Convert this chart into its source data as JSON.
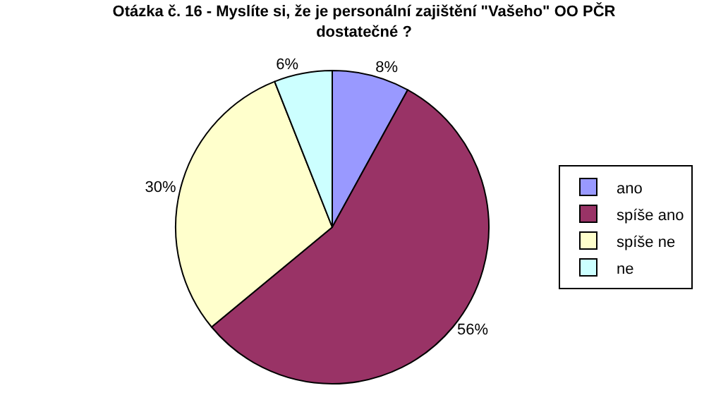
{
  "chart_data": {
    "type": "pie",
    "title": "Otázka č. 16 - Myslíte si, že je personální zajištění \"Vašeho\" OO PČR dostatečné ?",
    "categories": [
      "ano",
      "spíše ano",
      "spíše ne",
      "ne"
    ],
    "values": [
      8,
      56,
      30,
      6
    ],
    "value_labels": [
      "8%",
      "56%",
      "30%",
      "6%"
    ],
    "colors": [
      "#9999ff",
      "#993366",
      "#ffffcc",
      "#ccffff"
    ],
    "legend": "right"
  }
}
